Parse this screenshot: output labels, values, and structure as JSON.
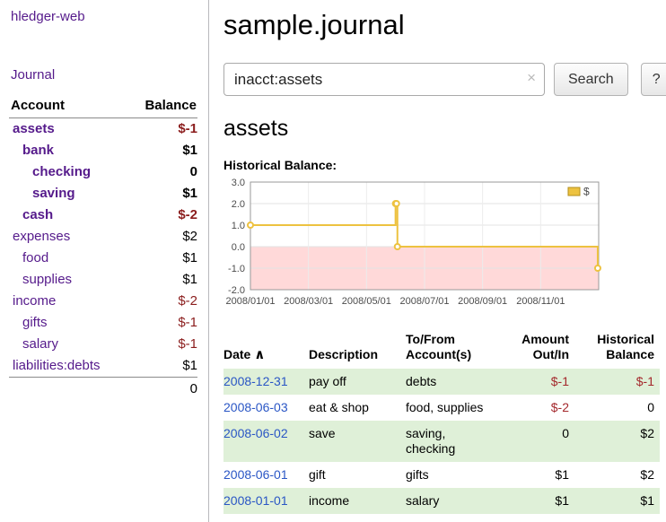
{
  "sidebar": {
    "brand": "hledger-web",
    "journal_link": "Journal",
    "accounts_header": {
      "account": "Account",
      "balance": "Balance"
    },
    "accounts": [
      {
        "name": "assets",
        "indent": 0,
        "balance": "$-1",
        "bold": true,
        "negative": true
      },
      {
        "name": "bank",
        "indent": 1,
        "balance": "$1",
        "bold": true,
        "negative": false
      },
      {
        "name": "checking",
        "indent": 2,
        "balance": "0",
        "bold": true,
        "negative": false
      },
      {
        "name": "saving",
        "indent": 2,
        "balance": "$1",
        "bold": true,
        "negative": false
      },
      {
        "name": "cash",
        "indent": 1,
        "balance": "$-2",
        "bold": true,
        "negative": true
      },
      {
        "name": "expenses",
        "indent": 0,
        "balance": "$2",
        "bold": false,
        "negative": false
      },
      {
        "name": "food",
        "indent": 1,
        "balance": "$1",
        "bold": false,
        "negative": false
      },
      {
        "name": "supplies",
        "indent": 1,
        "balance": "$1",
        "bold": false,
        "negative": false
      },
      {
        "name": "income",
        "indent": 0,
        "balance": "$-2",
        "bold": false,
        "negative": true
      },
      {
        "name": "gifts",
        "indent": 1,
        "balance": "$-1",
        "bold": false,
        "negative": true
      },
      {
        "name": "salary",
        "indent": 1,
        "balance": "$-1",
        "bold": false,
        "negative": true
      },
      {
        "name": "liabilities:debts",
        "indent": 0,
        "balance": "$1",
        "bold": false,
        "negative": false
      }
    ],
    "total": "0"
  },
  "header": {
    "title": "sample.journal"
  },
  "search": {
    "value": "inacct:assets",
    "clear_icon": "×",
    "button": "Search",
    "help_button": "?"
  },
  "main": {
    "account_title": "assets",
    "chart_label": "Historical Balance:"
  },
  "chart_data": {
    "type": "line",
    "step": true,
    "title": "Historical Balance",
    "legend": "$",
    "legend_position": "top-right",
    "line_color": "#edc240",
    "negative_region_color": "#ffd9d9",
    "ylim": [
      -2.0,
      3.0
    ],
    "y_ticks": [
      3.0,
      2.0,
      1.0,
      0.0,
      -1.0,
      -2.0
    ],
    "x_tick_labels": [
      "2008/01/01",
      "2008/03/01",
      "2008/05/01",
      "2008/07/01",
      "2008/09/01",
      "2008/11/01"
    ],
    "points": [
      {
        "date": "2008-01-01",
        "value": 1
      },
      {
        "date": "2008-06-01",
        "value": 2
      },
      {
        "date": "2008-06-02",
        "value": 2
      },
      {
        "date": "2008-06-03",
        "value": 0
      },
      {
        "date": "2008-12-31",
        "value": -1
      }
    ]
  },
  "register": {
    "headers": {
      "date": "Date",
      "sort_icon": "∧",
      "description": "Description",
      "account": "To/From Account(s)",
      "amount": "Amount Out/In",
      "balance": "Historical Balance"
    },
    "rows": [
      {
        "date": "2008-12-31",
        "description": "pay off",
        "account": "debts",
        "amount": "$-1",
        "balance": "$-1",
        "amount_negative": true,
        "balance_negative": true,
        "shaded": true
      },
      {
        "date": "2008-06-03",
        "description": "eat & shop",
        "account": "food, supplies",
        "amount": "$-2",
        "balance": "0",
        "amount_negative": true,
        "balance_negative": false,
        "shaded": false
      },
      {
        "date": "2008-06-02",
        "description": "save",
        "account": "saving, checking",
        "amount": "0",
        "balance": "$2",
        "amount_negative": false,
        "balance_negative": false,
        "shaded": true
      },
      {
        "date": "2008-06-01",
        "description": "gift",
        "account": "gifts",
        "amount": "$1",
        "balance": "$2",
        "amount_negative": false,
        "balance_negative": false,
        "shaded": false
      },
      {
        "date": "2008-01-01",
        "description": "income",
        "account": "salary",
        "amount": "$1",
        "balance": "$1",
        "amount_negative": false,
        "balance_negative": false,
        "shaded": true
      }
    ]
  },
  "colors": {
    "link_purple": "#551a8b",
    "date_link_blue": "#2a56c5",
    "sidebar_negative_red": "#8b1d1d",
    "table_negative_red": "#a4282c",
    "row_shade_green": "#dff0d8"
  }
}
